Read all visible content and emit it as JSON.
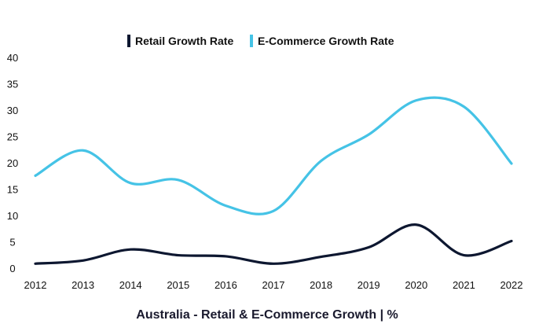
{
  "chart_data": {
    "type": "line",
    "title": "Australia - Retail & E-Commerce Growth | %",
    "xlabel": "",
    "ylabel": "",
    "x": [
      2012,
      2013,
      2014,
      2015,
      2016,
      2017,
      2018,
      2019,
      2020,
      2021,
      2022
    ],
    "x_tick_labels": [
      "2012",
      "2013",
      "2014",
      "2015",
      "2016",
      "2017",
      "2018",
      "2019",
      "2020",
      "2021",
      "2022"
    ],
    "ylim": [
      0,
      40
    ],
    "y_ticks": [
      0,
      5,
      10,
      15,
      20,
      25,
      30,
      35,
      40
    ],
    "y_tick_labels": [
      "0",
      "5",
      "10",
      "15",
      "20",
      "25",
      "30",
      "35",
      "40"
    ],
    "grid": false,
    "legend_position": "top-center",
    "series": [
      {
        "name": "Retail Growth Rate",
        "color": "#0d1730",
        "values": [
          1.0,
          1.6,
          3.7,
          2.6,
          2.4,
          1.0,
          2.3,
          4.1,
          8.4,
          2.6,
          5.3
        ]
      },
      {
        "name": "E-Commerce Growth Rate",
        "color": "#45c3e6",
        "values": [
          17.7,
          22.5,
          16.3,
          16.9,
          12.0,
          11.0,
          20.5,
          25.5,
          32.0,
          30.8,
          20.0
        ]
      }
    ]
  }
}
